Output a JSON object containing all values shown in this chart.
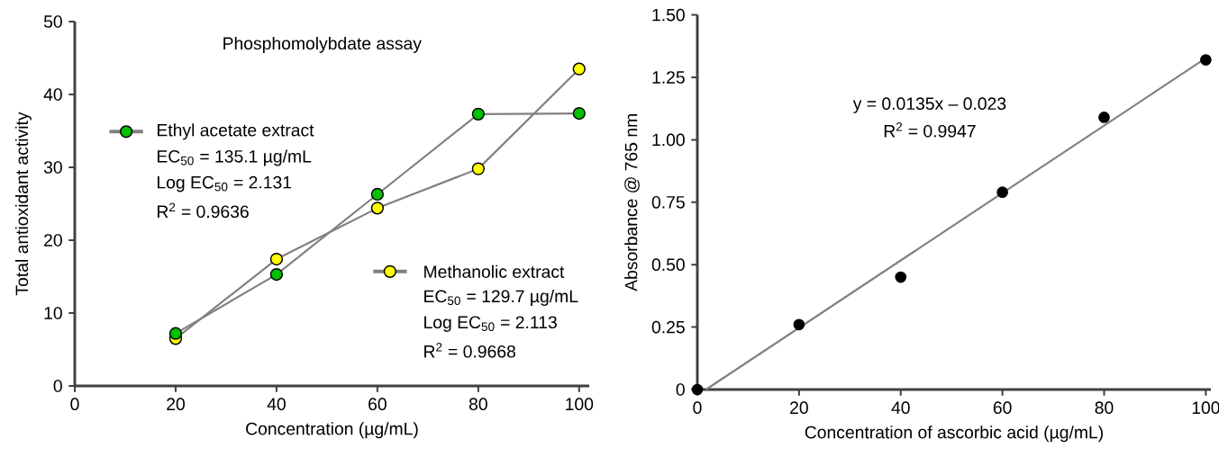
{
  "chart_data": [
    {
      "type": "line",
      "title": "Phosphomolybdate assay",
      "xlabel": "Concentration (µg/mL)",
      "ylabel": "Total antioxidant activity",
      "x": [
        20,
        40,
        60,
        80,
        100
      ],
      "series": [
        {
          "name": "Ethyl acetate extract",
          "color": "#00c000",
          "values": [
            7.2,
            15.3,
            26.3,
            37.3,
            37.4
          ]
        },
        {
          "name": "Methanolic extract",
          "color": "#ffff00",
          "values": [
            6.5,
            17.4,
            24.4,
            29.8,
            43.5
          ]
        }
      ],
      "xlim": [
        0,
        102
      ],
      "ylim": [
        0,
        50
      ],
      "xticks": [
        0,
        20,
        40,
        60,
        80,
        100
      ],
      "yticks": [
        0,
        10,
        20,
        30,
        40,
        50
      ],
      "marker": "circle",
      "legend": "left",
      "annotations": [
        "EC$_{50}$ = 135.1 µg/mL",
        "Log EC$_{50}$ = 2.131",
        "R$^{2}$ = 0.9636",
        "EC$_{50}$ = 129.7 µg/mL",
        "Log EC$_{50}$ = 2.113",
        "R$^{2}$ = 0.9668"
      ]
    },
    {
      "type": "scatter",
      "xlabel": "Concentration of ascorbic acid (µg/mL)",
      "ylabel": "Absorbance @ 765 nm",
      "series": [
        {
          "color": "#000000",
          "x": [
            0,
            20,
            40,
            60,
            80,
            100
          ],
          "values": [
            0,
            0.26,
            0.45,
            0.79,
            1.09,
            1.32
          ]
        },
        {
          "type": "line",
          "marker": "none",
          "color": "#808080",
          "x": [
            1.7,
            100
          ],
          "values": [
            0,
            1.327
          ]
        }
      ],
      "xlim": [
        0,
        101
      ],
      "ylim": [
        0,
        1.5
      ],
      "xticks": [
        0,
        20,
        40,
        60,
        80,
        100
      ],
      "yticks": [
        0,
        {
          "value": 0.25,
          "label": "0.25"
        },
        {
          "value": 0.5,
          "label": "0.50"
        },
        0.75,
        {
          "value": 1.0,
          "label": "1.00"
        },
        1.25,
        {
          "value": 1.5,
          "label": "1.50"
        }
      ],
      "marker": "circle",
      "annotations": [
        "y = 0.0135x – 0.023",
        "R$^{2}$ = 0.9947"
      ]
    }
  ]
}
